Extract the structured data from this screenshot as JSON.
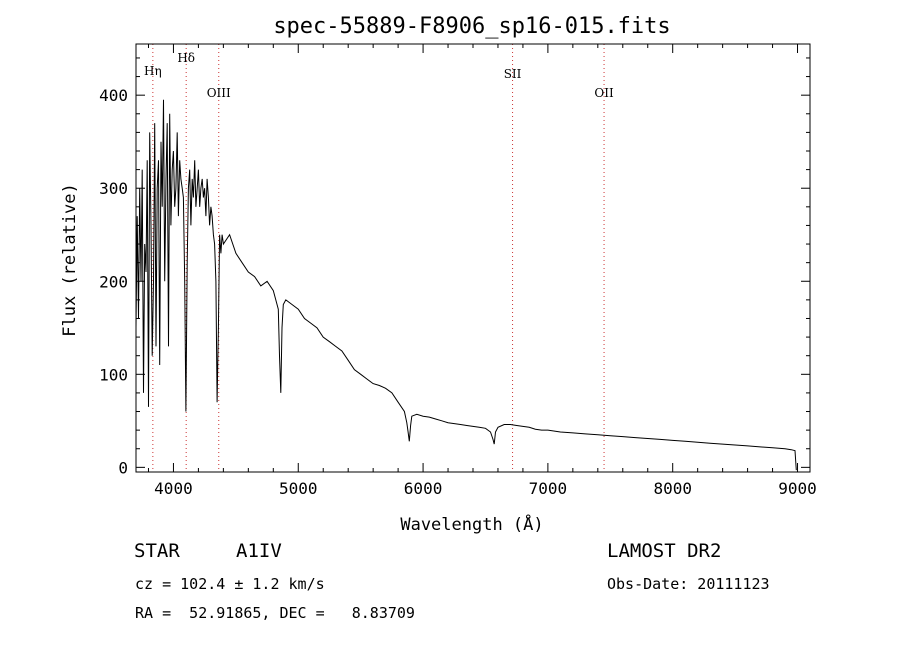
{
  "chart_data": {
    "type": "line",
    "title": "spec-55889-F8906_sp16-015.fits",
    "xlabel": "Wavelength (Å)",
    "ylabel": "Flux (relative)",
    "xlim": [
      3700,
      9100
    ],
    "ylim": [
      -5,
      455
    ],
    "x_ticks": [
      4000,
      5000,
      6000,
      7000,
      8000,
      9000
    ],
    "y_ticks": [
      0,
      100,
      200,
      300,
      400
    ],
    "grid": false,
    "legend": "none",
    "line_color": "#000000",
    "marker_color": "#cc3333",
    "spectral_lines": [
      {
        "label": "Hη",
        "x": 3835
      },
      {
        "label": "Hδ",
        "x": 4102
      },
      {
        "label": "OIII",
        "x": 4363
      },
      {
        "label": "SII",
        "x": 6717
      },
      {
        "label": "OII",
        "x": 7450
      }
    ],
    "series": [
      {
        "x": [
          3700,
          3710,
          3720,
          3730,
          3740,
          3750,
          3760,
          3770,
          3780,
          3790,
          3800,
          3810,
          3820,
          3830,
          3840,
          3850,
          3860,
          3870,
          3880,
          3890,
          3900,
          3910,
          3920,
          3930,
          3940,
          3950,
          3960,
          3970,
          3980,
          3990,
          4000,
          4010,
          4020,
          4030,
          4040,
          4050,
          4060,
          4070,
          4080,
          4090,
          4100,
          4110,
          4120,
          4130,
          4140,
          4150,
          4160,
          4170,
          4180,
          4190,
          4200,
          4210,
          4220,
          4230,
          4240,
          4250,
          4260,
          4270,
          4280,
          4290,
          4300,
          4310,
          4320,
          4330,
          4340,
          4350,
          4360,
          4370,
          4380,
          4390,
          4400,
          4450,
          4500,
          4550,
          4600,
          4650,
          4700,
          4750,
          4800,
          4820,
          4840,
          4850,
          4860,
          4870,
          4880,
          4900,
          4950,
          5000,
          5050,
          5100,
          5150,
          5200,
          5250,
          5300,
          5350,
          5400,
          5450,
          5500,
          5550,
          5600,
          5650,
          5700,
          5750,
          5800,
          5850,
          5870,
          5880,
          5890,
          5900,
          5910,
          5950,
          6000,
          6050,
          6100,
          6150,
          6200,
          6250,
          6300,
          6350,
          6400,
          6450,
          6500,
          6540,
          6560,
          6570,
          6580,
          6600,
          6650,
          6700,
          6750,
          6800,
          6850,
          6900,
          6950,
          7000,
          7100,
          7200,
          7300,
          7400,
          7500,
          7600,
          7700,
          7800,
          7900,
          8000,
          8100,
          8200,
          8300,
          8400,
          8500,
          8600,
          8700,
          8800,
          8900,
          8950,
          8980,
          8990
        ],
        "y": [
          150,
          270,
          160,
          300,
          200,
          320,
          80,
          240,
          210,
          330,
          65,
          360,
          260,
          120,
          200,
          370,
          130,
          300,
          330,
          110,
          350,
          280,
          395,
          200,
          310,
          370,
          130,
          380,
          260,
          320,
          340,
          280,
          300,
          360,
          270,
          330,
          310,
          300,
          290,
          200,
          60,
          220,
          300,
          320,
          260,
          310,
          290,
          330,
          280,
          300,
          320,
          280,
          300,
          310,
          290,
          300,
          270,
          310,
          290,
          260,
          280,
          270,
          250,
          240,
          200,
          70,
          150,
          250,
          230,
          250,
          240,
          250,
          230,
          220,
          210,
          205,
          195,
          200,
          190,
          180,
          170,
          120,
          80,
          150,
          175,
          180,
          175,
          170,
          160,
          155,
          150,
          140,
          135,
          130,
          125,
          115,
          105,
          100,
          95,
          90,
          88,
          85,
          80,
          70,
          60,
          48,
          38,
          28,
          45,
          55,
          57,
          55,
          54,
          52,
          50,
          48,
          47,
          46,
          45,
          44,
          43,
          42,
          38,
          30,
          25,
          38,
          43,
          46,
          46,
          45,
          44,
          43,
          41,
          40,
          40,
          38,
          37,
          36,
          35,
          34,
          33,
          32,
          31,
          30,
          29,
          28,
          27,
          26,
          25,
          24,
          23,
          22,
          21,
          20,
          19,
          18,
          -3
        ]
      }
    ]
  },
  "footer": {
    "object_type": "STAR",
    "spectral_class": "A1IV",
    "survey": "LAMOST DR2",
    "redshift": "cz = 102.4 ± 1.2 km/s",
    "obs_date": "Obs-Date: 20111123",
    "coords": "RA =  52.91865, DEC =   8.83709"
  }
}
